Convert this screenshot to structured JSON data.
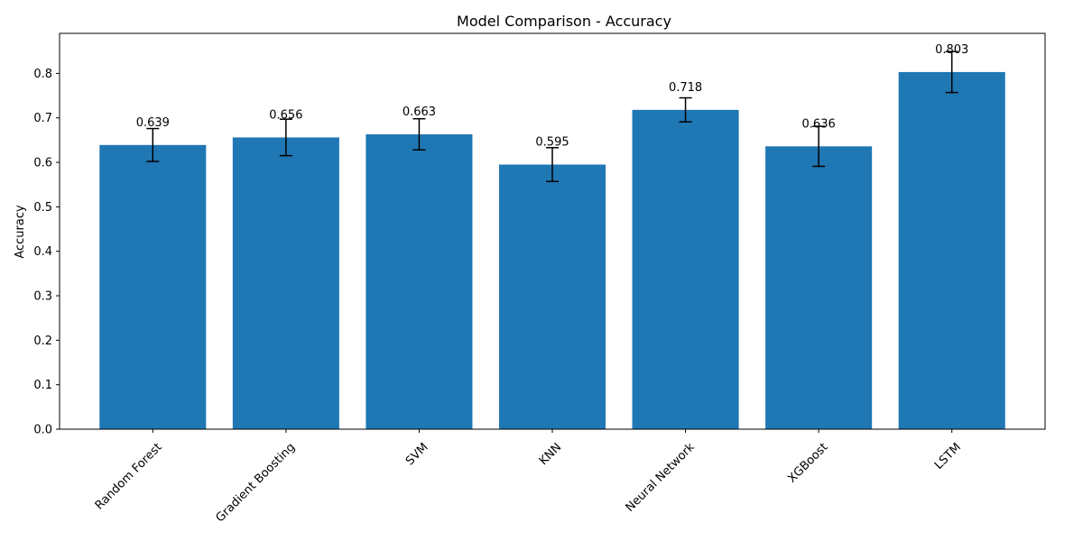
{
  "chart_data": {
    "type": "bar",
    "title": "Model Comparison - Accuracy",
    "xlabel": "",
    "ylabel": "Accuracy",
    "categories": [
      "Random Forest",
      "Gradient Boosting",
      "SVM",
      "KNN",
      "Neural Network",
      "XGBoost",
      "LSTM"
    ],
    "values": [
      0.639,
      0.656,
      0.663,
      0.595,
      0.718,
      0.636,
      0.803
    ],
    "data_labels": [
      "0.639",
      "0.656",
      "0.663",
      "0.595",
      "0.718",
      "0.636",
      "0.803"
    ],
    "errors": [
      0.037,
      0.041,
      0.035,
      0.038,
      0.027,
      0.045,
      0.046
    ],
    "ylim": [
      0,
      0.89
    ],
    "yticks": [
      0.0,
      0.1,
      0.2,
      0.3,
      0.4,
      0.5,
      0.6,
      0.7,
      0.8
    ],
    "ytick_labels": [
      "0.0",
      "0.1",
      "0.2",
      "0.3",
      "0.4",
      "0.5",
      "0.6",
      "0.7",
      "0.8"
    ],
    "grid": false,
    "color": "#1f77b4",
    "xtick_rotation_deg": 45
  }
}
